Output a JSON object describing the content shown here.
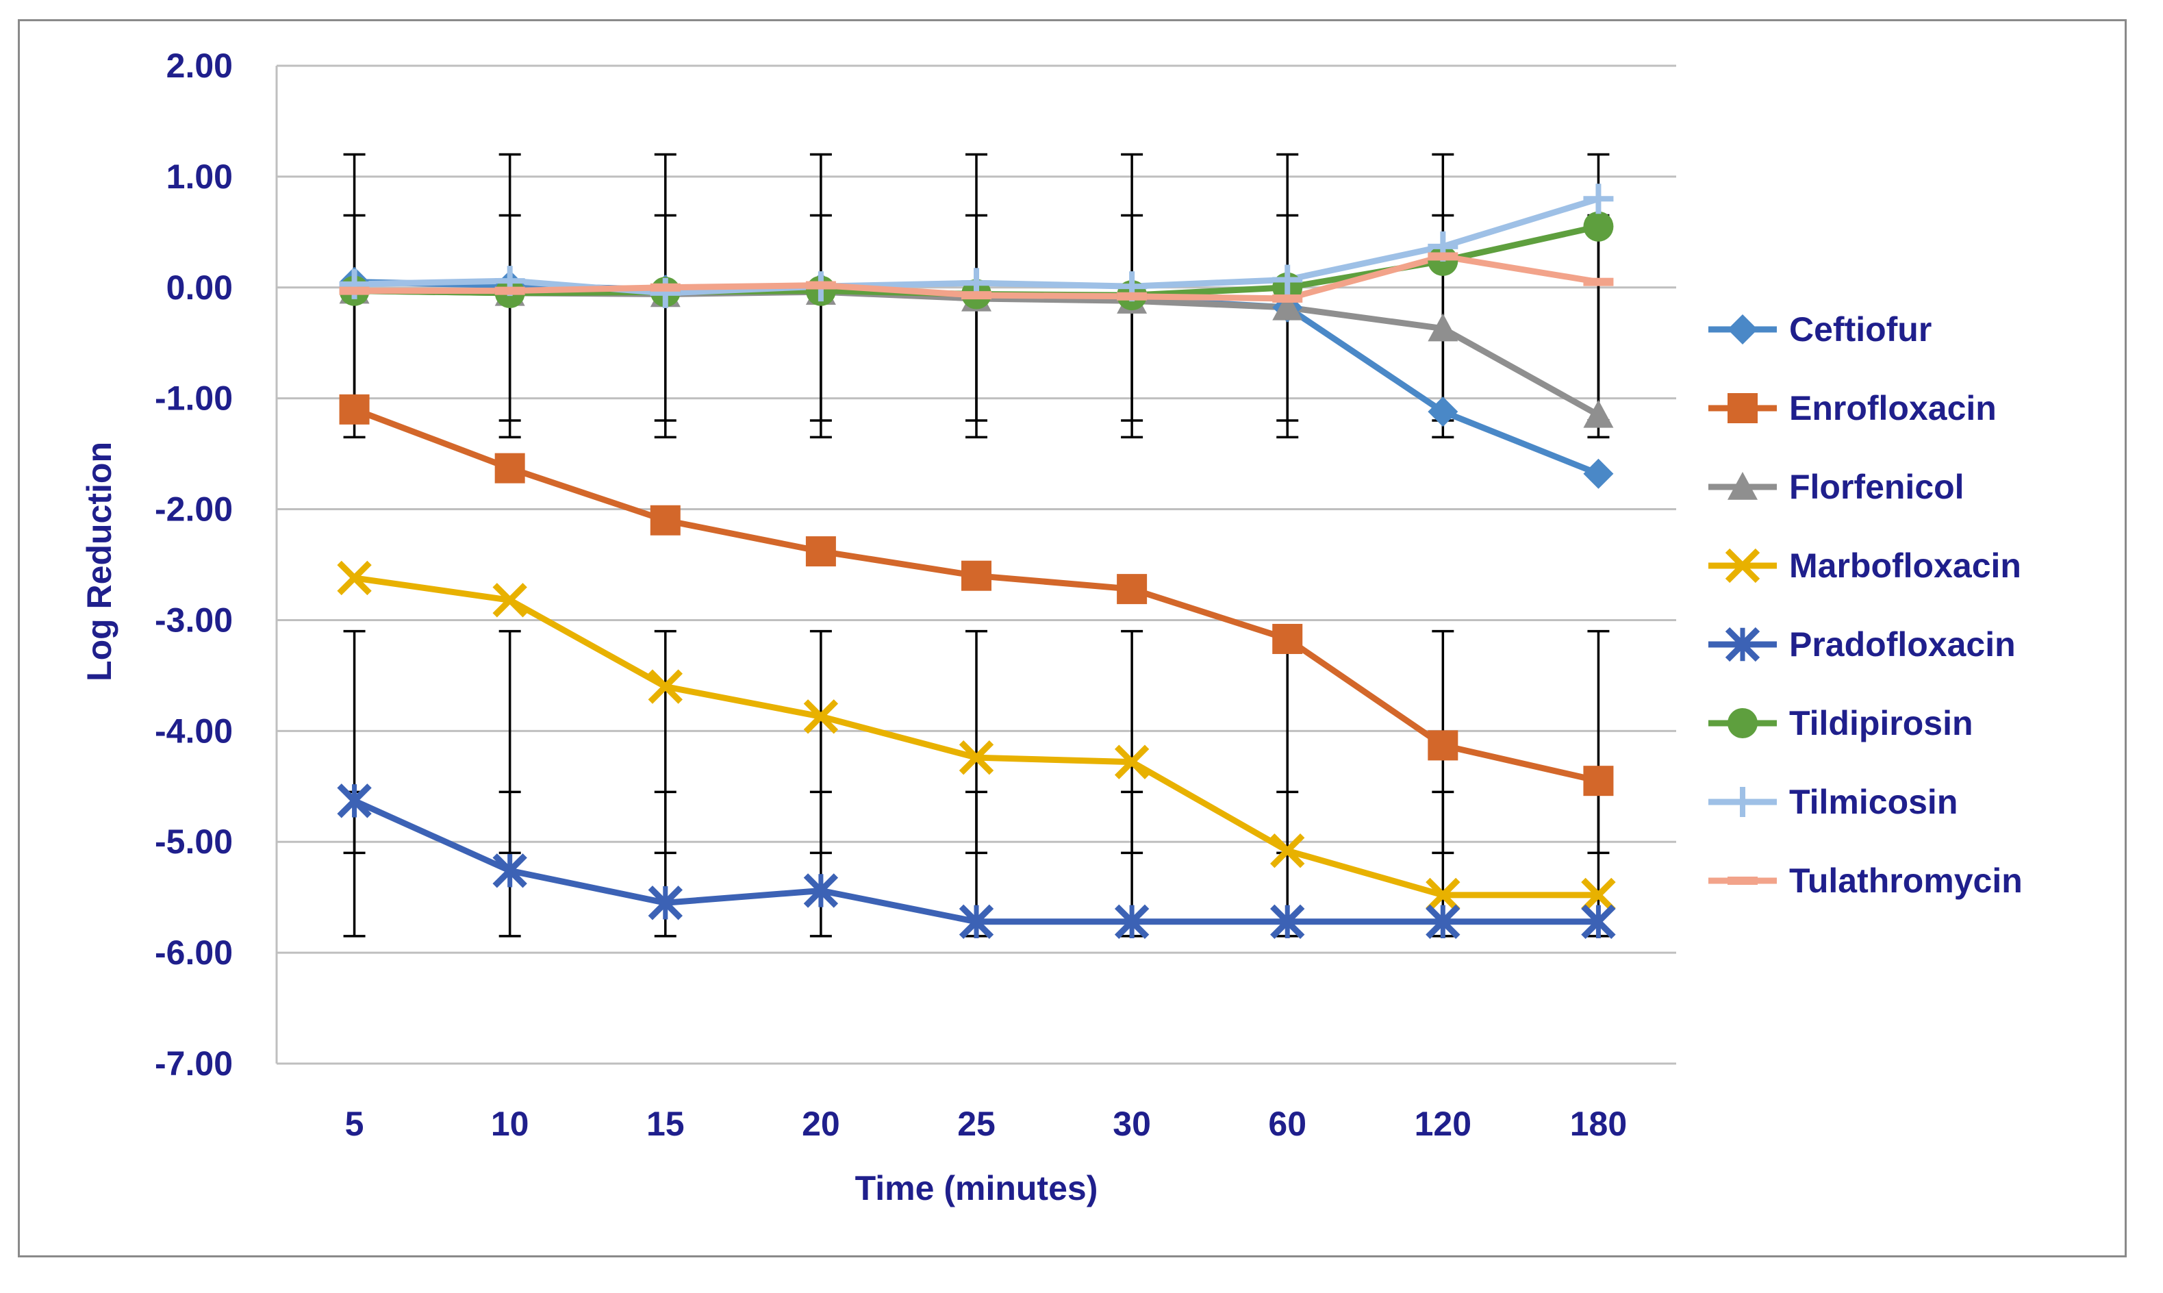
{
  "chart_data": {
    "type": "line",
    "title": "",
    "xlabel": "Time (minutes)",
    "ylabel": "Log Reduction",
    "categories": [
      "5",
      "10",
      "15",
      "20",
      "25",
      "30",
      "60",
      "120",
      "180"
    ],
    "ylim": [
      -7,
      2
    ],
    "yticks": [
      "2.00",
      "1.00",
      "0.00",
      "-1.00",
      "-2.00",
      "-3.00",
      "-4.00",
      "-5.00",
      "-6.00",
      "-7.00"
    ],
    "ytick_values": [
      2,
      1,
      0,
      -1,
      -2,
      -3,
      -4,
      -5,
      -6,
      -7
    ],
    "grid": "horizontal",
    "legend_position": "right",
    "error_bars": "black vertical bars with caps, approx ±1.2 log",
    "series": [
      {
        "name": "Ceftiofur",
        "color": "#4a88c7",
        "marker": "diamond",
        "values": [
          0.05,
          0.02,
          -0.02,
          0.0,
          -0.08,
          -0.1,
          -0.18,
          -1.12,
          -1.68
        ]
      },
      {
        "name": "Enrofloxacin",
        "color": "#d3672a",
        "marker": "square",
        "values": [
          -1.1,
          -1.63,
          -2.1,
          -2.38,
          -2.6,
          -2.72,
          -3.17,
          -4.13,
          -4.45
        ]
      },
      {
        "name": "Florfenicol",
        "color": "#8f8f8f",
        "marker": "triangle",
        "values": [
          -0.03,
          -0.05,
          -0.06,
          -0.04,
          -0.1,
          -0.12,
          -0.18,
          -0.37,
          -1.15
        ]
      },
      {
        "name": "Marbofloxacin",
        "color": "#e8b100",
        "marker": "x",
        "values": [
          -2.62,
          -2.82,
          -3.6,
          -3.87,
          -4.24,
          -4.28,
          -5.08,
          -5.48,
          -5.48
        ]
      },
      {
        "name": "Pradofloxacin",
        "color": "#3c62b5",
        "marker": "star",
        "values": [
          -4.63,
          -5.26,
          -5.55,
          -5.44,
          -5.72,
          -5.72,
          -5.72,
          -5.72,
          -5.72
        ]
      },
      {
        "name": "Tildipirosin",
        "color": "#5e9f3e",
        "marker": "circle",
        "values": [
          -0.03,
          -0.05,
          -0.04,
          -0.03,
          -0.06,
          -0.07,
          0.0,
          0.24,
          0.55
        ]
      },
      {
        "name": "Tilmicosin",
        "color": "#9ec0e6",
        "marker": "plus",
        "values": [
          0.03,
          0.06,
          -0.05,
          0.01,
          0.04,
          0.01,
          0.07,
          0.37,
          0.8
        ]
      },
      {
        "name": "Tulathromycin",
        "color": "#f2a38a",
        "marker": "dash",
        "values": [
          -0.03,
          -0.03,
          0.0,
          0.02,
          -0.07,
          -0.08,
          -0.1,
          0.28,
          0.05
        ]
      }
    ],
    "error_groups": [
      {
        "series_index": 0,
        "err": 1.2,
        "centers_override": [
          0.0,
          0.0,
          0.0,
          0.0,
          0.0,
          0.0,
          0.0,
          0.0,
          0.0
        ]
      },
      {
        "series_index": 1,
        "err": 1.0,
        "centers_override": [
          -0.35,
          -0.35,
          -0.35,
          -0.35,
          -0.35,
          -0.35,
          -0.35,
          -0.35,
          -0.35
        ]
      },
      {
        "series_index": 3,
        "err": 1.0,
        "centers_override": [
          -4.1,
          -4.1,
          -4.1,
          -4.1,
          -4.1,
          -4.1,
          -4.1,
          -4.1,
          -4.1
        ]
      },
      {
        "series_index": 4,
        "err": 0.65,
        "centers_override": [
          -5.2,
          -5.2,
          -5.2,
          -5.2,
          -5.2,
          -5.2,
          -5.2,
          -5.2,
          -5.2
        ]
      }
    ]
  }
}
